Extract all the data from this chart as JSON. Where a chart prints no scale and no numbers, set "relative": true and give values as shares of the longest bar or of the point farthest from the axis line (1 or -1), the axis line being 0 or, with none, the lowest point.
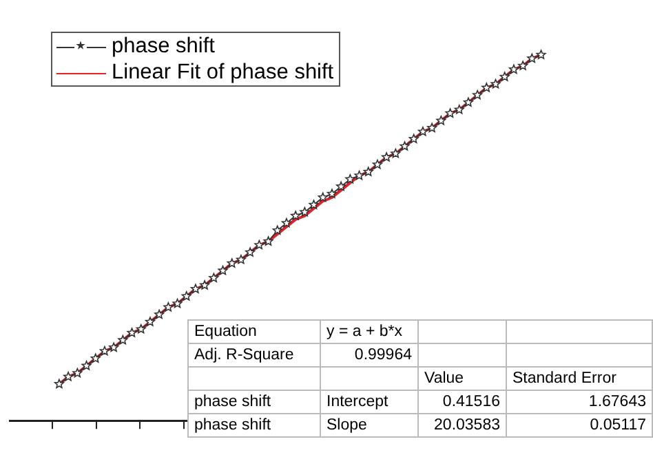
{
  "chart_data": {
    "type": "line",
    "relative": true,
    "legend": "top left",
    "marker": "star",
    "line_style": "solid",
    "grid": false,
    "categories": [
      null,
      null,
      null,
      null,
      null,
      null,
      null,
      null,
      null,
      null,
      null,
      null,
      null,
      null,
      null,
      null,
      null,
      null,
      null,
      null,
      null,
      null,
      null,
      null,
      null,
      null,
      null,
      null,
      null,
      null,
      null,
      null,
      null,
      null,
      null,
      null,
      null,
      null,
      null,
      null,
      null,
      null,
      null,
      null,
      null,
      null,
      null,
      null,
      null,
      null,
      null,
      null,
      null,
      null
    ],
    "series": [
      {
        "name": "phase shift",
        "color": "#333333",
        "values": [
          0.1,
          0.12,
          0.13,
          0.15,
          0.17,
          0.19,
          0.2,
          0.22,
          0.24,
          0.25,
          0.27,
          0.29,
          0.31,
          0.32,
          0.34,
          0.36,
          0.37,
          0.39,
          0.41,
          0.43,
          0.44,
          0.46,
          0.48,
          0.49,
          0.52,
          0.54,
          0.56,
          0.57,
          0.59,
          0.61,
          0.62,
          0.64,
          0.66,
          0.67,
          0.68,
          0.7,
          0.72,
          0.73,
          0.75,
          0.77,
          0.79,
          0.8,
          0.82,
          0.84,
          0.85,
          0.87,
          0.89,
          0.91,
          0.92,
          0.94,
          0.96,
          0.97,
          0.99,
          1.0
        ]
      },
      {
        "name": "Linear Fit of phase shift",
        "color": "#e8202a",
        "type": "line",
        "marker": "none",
        "values": [
          0.1,
          0.12,
          0.13,
          0.15,
          0.17,
          0.19,
          0.2,
          0.22,
          0.24,
          0.25,
          0.27,
          0.29,
          0.31,
          0.32,
          0.34,
          0.36,
          0.37,
          0.39,
          0.41,
          0.43,
          0.44,
          0.46,
          0.48,
          0.49,
          0.51,
          0.53,
          0.55,
          0.56,
          0.58,
          0.6,
          0.61,
          0.63,
          0.65,
          0.67,
          0.68,
          0.7,
          0.72,
          0.73,
          0.75,
          0.77,
          0.79,
          0.8,
          0.82,
          0.84,
          0.85,
          0.87,
          0.89,
          0.91,
          0.92,
          0.94,
          0.96,
          0.97,
          0.99,
          1.0
        ]
      }
    ],
    "annotations": [
      "Equation",
      "y = a + b*x",
      "Adj. R-Square",
      "0.99964",
      "Value",
      "Standard Error",
      "phase shift",
      "Intercept",
      "0.41516",
      "1.67643",
      "phase shift",
      "Slope",
      "20.03583",
      "0.05117"
    ]
  }
}
